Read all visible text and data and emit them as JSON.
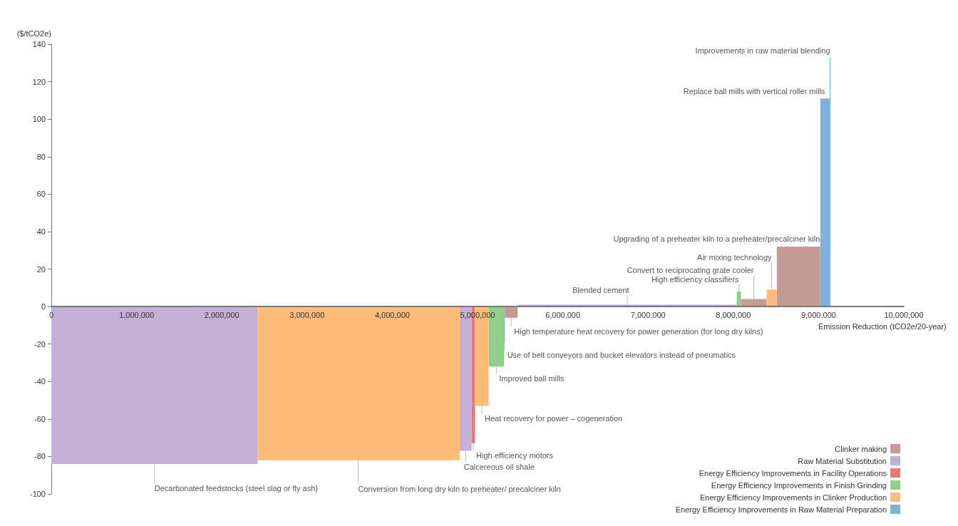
{
  "chart_data": {
    "type": "histogram",
    "ylabel": "($/tCO2e)",
    "xlabel": "Emission Reduction (tCO2e/20-year)",
    "xlim": [
      0,
      10000000
    ],
    "xticks": [
      0,
      {
        "value": 1000000,
        "label": "1,000,000"
      },
      {
        "value": 2000000,
        "label": "2,000,000"
      },
      {
        "value": 3000000,
        "label": "3,000,000"
      },
      {
        "value": 4000000,
        "label": "4,000,000"
      },
      {
        "value": 5000000,
        "label": "5,000,000"
      },
      {
        "value": 6000000,
        "label": "6,000,000"
      },
      {
        "value": 7000000,
        "label": "7,000,000"
      },
      {
        "value": 8000000,
        "label": "8,000,000"
      },
      {
        "value": 9000000,
        "label": "9,000,000"
      },
      {
        "value": 10000000,
        "label": "10,000,000"
      }
    ],
    "ylim": [
      -100,
      140
    ],
    "yticks": [
      -100,
      -80,
      -60,
      -40,
      -20,
      0,
      20,
      40,
      60,
      80,
      100,
      120,
      140
    ],
    "legend": "bottom right",
    "bins": [
      0,
      2420000,
      4790000,
      4930000,
      4970000,
      5130000,
      5310000,
      5320000,
      5470000,
      8040000,
      8090000,
      8390000,
      8510000,
      9020000,
      9130000,
      9140000
    ],
    "series": [
      {
        "name": "Clinker making",
        "color": "#c49c94",
        "values": [
          null,
          null,
          null,
          null,
          null,
          null,
          null,
          -6,
          null,
          null,
          4,
          null,
          32,
          null,
          null
        ]
      },
      {
        "name": "Raw Material Substitution",
        "color": "#c5b0d5",
        "values": [
          -84,
          null,
          -77,
          null,
          null,
          null,
          null,
          null,
          1,
          null,
          null,
          null,
          null,
          null,
          null
        ]
      },
      {
        "name": "Energy Efficiency Improvements in Facility Operations",
        "color": "#e8787a",
        "values": [
          null,
          null,
          null,
          -73,
          null,
          null,
          null,
          null,
          null,
          null,
          null,
          null,
          null,
          null,
          null
        ]
      },
      {
        "name": "Energy Efficiency Improvements in Finish Grinding",
        "color": "#8fcf8a",
        "values": [
          null,
          null,
          null,
          null,
          null,
          -32,
          null,
          null,
          null,
          8,
          null,
          null,
          null,
          null,
          null
        ]
      },
      {
        "name": "Energy Efficiency Improvements in Clinker Production",
        "color": "#ffbb78",
        "values": [
          null,
          -82,
          null,
          null,
          -53,
          null,
          null,
          null,
          null,
          null,
          null,
          9,
          null,
          null,
          null
        ]
      },
      {
        "name": "Energy Efficiency Improvements in Raw Material Preparation",
        "color": "#7eb2dd",
        "values": [
          null,
          null,
          null,
          null,
          null,
          null,
          -19,
          null,
          null,
          null,
          null,
          null,
          null,
          111,
          133
        ]
      }
    ],
    "annotations": [
      {
        "text": "Decarbonated feedstocks (steel slag or fly ash)",
        "x": 1210000,
        "y": -84
      },
      {
        "text": "Conversion from long dry kiln to preheater/ precalciner kiln",
        "x": 3600000,
        "y": -82
      },
      {
        "text": "Calcereous oil shale",
        "x": 4860000,
        "y": -77
      },
      {
        "text": "High efficiency motors",
        "x": 4950000,
        "y": -73
      },
      {
        "text": "Heat recovery for power – cogeneration",
        "x": 5050000,
        "y": -53
      },
      {
        "text": "Improved ball mills",
        "x": 5220000,
        "y": -32
      },
      {
        "text": "Use of belt conveyors and bucket elevators instead of pneumatics",
        "x": 5315000,
        "y": -19
      },
      {
        "text": "High temperature heat recovery for power generation (for long dry kilns)",
        "x": 5395000,
        "y": -6
      },
      {
        "text": "Blended cement",
        "x": 6755000,
        "y": 1
      },
      {
        "text": "High efficiency classifiers",
        "x": 8065000,
        "y": 8
      },
      {
        "text": "Convert to reciprocating grate cooler",
        "x": 8240000,
        "y": 4
      },
      {
        "text": "Air mixing technology",
        "x": 8450000,
        "y": 9
      },
      {
        "text": "Upgrading of a preheater kiln to a preheater/precalciner kiln",
        "x": 8765000,
        "y": 32
      },
      {
        "text": "Replace ball mills with vertical roller mills",
        "x": 9075000,
        "y": 111
      },
      {
        "text": "Improvements in raw material blending",
        "x": 9135000,
        "y": 133
      }
    ]
  }
}
